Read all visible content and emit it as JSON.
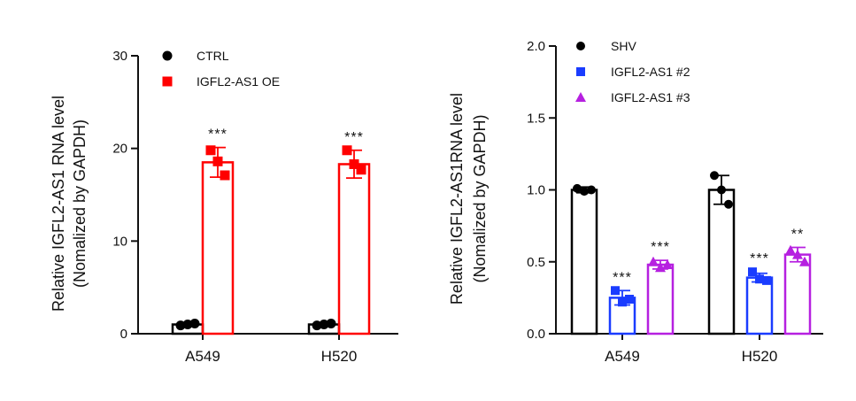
{
  "chart_data": [
    {
      "type": "bar",
      "ylabel_line1": "Relative IGFL2-AS1 RNA level",
      "ylabel_line2": "(Nomalized by GAPDH)",
      "ylim": [
        0,
        30
      ],
      "yticks": [
        0,
        10,
        20,
        30
      ],
      "tick_labels": [
        "0",
        "10",
        "20",
        "30"
      ],
      "categories": [
        "A549",
        "H520"
      ],
      "series": [
        {
          "name": "CTRL",
          "color": "#000000",
          "marker": "circle",
          "values": [
            1.0,
            1.0
          ],
          "errors": [
            0.1,
            0.1
          ],
          "points": [
            [
              0.9,
              1.0,
              1.1
            ],
            [
              0.9,
              1.0,
              1.1
            ]
          ],
          "sig": [
            "",
            ""
          ]
        },
        {
          "name": "IGFL2-AS1 OE",
          "color": "#ff0000",
          "marker": "square",
          "values": [
            18.5,
            18.3
          ],
          "errors": [
            1.6,
            1.5
          ],
          "points": [
            [
              19.8,
              18.6,
              17.1
            ],
            [
              19.8,
              18.3,
              17.7
            ]
          ],
          "sig": [
            "***",
            "***"
          ]
        }
      ]
    },
    {
      "type": "bar",
      "ylabel_line1": "Relative IGFL2-AS1RNA level",
      "ylabel_line2": "(Nomalized by GAPDH)",
      "ylim": [
        0,
        2.0
      ],
      "yticks": [
        0,
        0.5,
        1.0,
        1.5,
        2.0
      ],
      "tick_labels": [
        "0.0",
        "0.5",
        "1.0",
        "1.5",
        "2.0"
      ],
      "categories": [
        "A549",
        "H520"
      ],
      "series": [
        {
          "name": "SHV",
          "color": "#000000",
          "marker": "circle",
          "values": [
            1.0,
            1.0
          ],
          "errors": [
            0.02,
            0.1
          ],
          "points": [
            [
              1.01,
              0.99,
              1.0
            ],
            [
              1.1,
              1.0,
              0.9
            ]
          ],
          "sig": [
            "",
            ""
          ]
        },
        {
          "name": "IGFL2-AS1 #2",
          "color": "#1a3cff",
          "marker": "square",
          "values": [
            0.25,
            0.39
          ],
          "errors": [
            0.05,
            0.03
          ],
          "points": [
            [
              0.3,
              0.22,
              0.24
            ],
            [
              0.43,
              0.38,
              0.37
            ]
          ],
          "sig": [
            "***",
            "***"
          ]
        },
        {
          "name": "IGFL2-AS1 #3",
          "color": "#b620e0",
          "marker": "triangle",
          "values": [
            0.48,
            0.55
          ],
          "errors": [
            0.03,
            0.05
          ],
          "points": [
            [
              0.5,
              0.46,
              0.48
            ],
            [
              0.58,
              0.55,
              0.5
            ]
          ],
          "sig": [
            "***",
            "**"
          ]
        }
      ]
    }
  ]
}
